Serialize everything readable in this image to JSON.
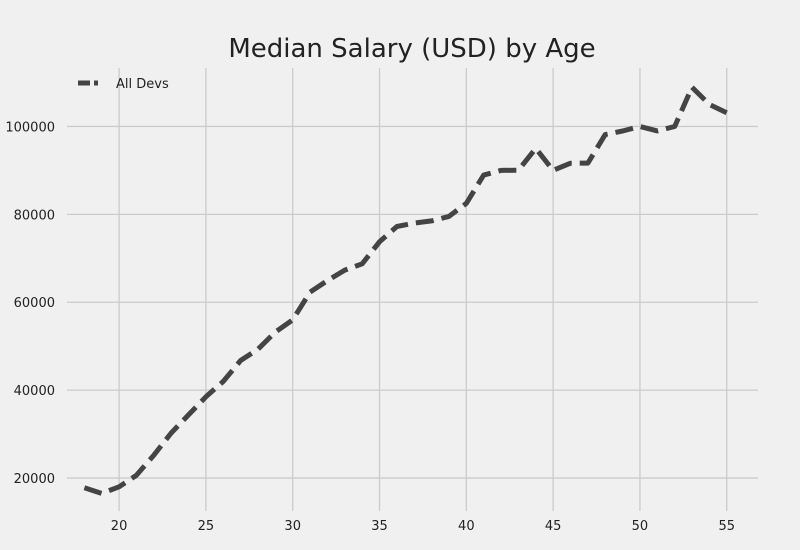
{
  "chart_data": {
    "type": "line",
    "title": "Median Salary (USD) by Age",
    "xlabel": "",
    "ylabel": "",
    "xlim": [
      17,
      56.8
    ],
    "ylim": [
      12500,
      113300
    ],
    "xticks": [
      20,
      25,
      30,
      35,
      40,
      45,
      50,
      55
    ],
    "yticks": [
      20000,
      40000,
      60000,
      80000,
      100000
    ],
    "grid": true,
    "legend_position": "top-left",
    "colors": {
      "background": "#f0f0f0",
      "grid": "#cbcbcb",
      "line": "#444444"
    },
    "x": [
      18,
      19,
      20,
      21,
      22,
      23,
      24,
      25,
      26,
      27,
      28,
      29,
      30,
      31,
      32,
      33,
      34,
      35,
      36,
      37,
      38,
      39,
      40,
      41,
      42,
      43,
      44,
      45,
      46,
      47,
      48,
      49,
      50,
      51,
      52,
      53,
      54,
      55
    ],
    "series": [
      {
        "name": "All Devs",
        "style": "dashed",
        "color": "#444444",
        "values": [
          17784,
          16500,
          18012,
          20628,
          25206,
          30252,
          34368,
          38496,
          42000,
          46752,
          49320,
          53200,
          56000,
          62316,
          64928,
          67317,
          68748,
          73752,
          77232,
          78000,
          78508,
          79536,
          82488,
          88935,
          90000,
          90056,
          95000,
          90000,
          91633,
          91660,
          98150,
          98964,
          100000,
          98988,
          100000,
          108923,
          105000,
          103117
        ]
      }
    ]
  }
}
